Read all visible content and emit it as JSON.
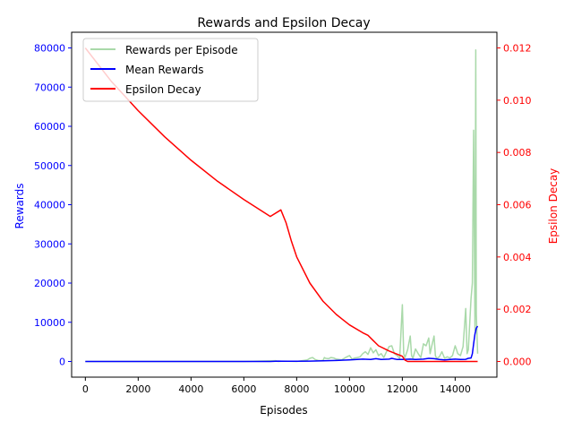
{
  "chart_data": {
    "type": "line",
    "title": "Rewards and Epsilon Decay",
    "xlabel": "Episodes",
    "ylabel_left": "Rewards",
    "ylabel_right": "Epsilon Decay",
    "xlim": [
      -520,
      15580
    ],
    "ylim_left": [
      -4000,
      84000
    ],
    "ylim_right": [
      -0.0006,
      0.0126
    ],
    "x_ticks": [
      0,
      2000,
      4000,
      6000,
      8000,
      10000,
      12000,
      14000
    ],
    "y_ticks_left": [
      0,
      10000,
      20000,
      30000,
      40000,
      50000,
      60000,
      70000,
      80000
    ],
    "y_ticks_right": [
      0.0,
      0.002,
      0.004,
      0.006,
      0.008,
      0.01,
      0.012
    ],
    "y_tick_labels_right": [
      "0.000",
      "0.002",
      "0.004",
      "0.006",
      "0.008",
      "0.010",
      "0.012"
    ],
    "legend": {
      "position": "top-left",
      "entries": [
        "Rewards per Episode",
        "Mean Rewards",
        "Epsilon Decay"
      ]
    },
    "colors": {
      "rewards": "#a9d9a9",
      "mean": "#0000ff",
      "epsilon": "#ff0000",
      "left_axis": "#0000ff",
      "right_axis": "#ff0000"
    },
    "series": [
      {
        "name": "Rewards per Episode",
        "x": [
          0,
          6000,
          7200,
          7300,
          7500,
          8000,
          8200,
          8300,
          8400,
          8500,
          8600,
          8700,
          8800,
          8900,
          9000,
          9050,
          9100,
          9200,
          9300,
          9400,
          9500,
          9600,
          9700,
          9800,
          9900,
          10000,
          10100,
          10200,
          10300,
          10400,
          10500,
          10600,
          10700,
          10800,
          10900,
          11000,
          11100,
          11200,
          11300,
          11400,
          11500,
          11600,
          11700,
          11800,
          11900,
          12000,
          12050,
          12100,
          12200,
          12300,
          12350,
          12400,
          12500,
          12600,
          12700,
          12800,
          12900,
          13000,
          13050,
          13100,
          13200,
          13250,
          13300,
          13400,
          13500,
          13600,
          13700,
          13800,
          13900,
          14000,
          14050,
          14100,
          14200,
          14300,
          14400,
          14450,
          14500,
          14600,
          14650,
          14700,
          14750,
          14780,
          14800,
          14850
        ],
        "values": [
          0,
          0,
          200,
          0,
          100,
          0,
          200,
          300,
          400,
          800,
          1000,
          500,
          300,
          200,
          300,
          1000,
          800,
          700,
          1000,
          900,
          600,
          500,
          400,
          800,
          1200,
          1500,
          600,
          900,
          1000,
          1200,
          2000,
          2500,
          1800,
          3500,
          2200,
          3000,
          1500,
          2000,
          1000,
          2500,
          3800,
          4000,
          2000,
          1500,
          800,
          14500,
          2000,
          1000,
          3000,
          6500,
          1500,
          800,
          3200,
          2000,
          1000,
          4500,
          4000,
          6000,
          2000,
          3500,
          6500,
          1500,
          800,
          1200,
          2500,
          800,
          1200,
          900,
          1500,
          4000,
          3000,
          2000,
          1500,
          3800,
          13500,
          2000,
          3000,
          16000,
          20000,
          59000,
          8000,
          79500,
          12000,
          2000
        ]
      },
      {
        "name": "Mean Rewards",
        "x": [
          0,
          7000,
          7300,
          7500,
          8000,
          8500,
          9000,
          9500,
          10000,
          10500,
          10800,
          11000,
          11200,
          11500,
          11600,
          11800,
          12000,
          12300,
          12500,
          12800,
          13000,
          13200,
          13400,
          13600,
          13800,
          14000,
          14200,
          14400,
          14500,
          14600,
          14650,
          14700,
          14750,
          14800,
          14850
        ],
        "values": [
          0,
          0,
          100,
          50,
          50,
          100,
          150,
          250,
          400,
          600,
          500,
          700,
          500,
          600,
          800,
          500,
          500,
          600,
          500,
          600,
          800,
          700,
          500,
          400,
          500,
          600,
          500,
          550,
          800,
          900,
          2000,
          4500,
          7000,
          8500,
          9000
        ]
      },
      {
        "name": "Epsilon Decay",
        "x": [
          0,
          1000,
          2000,
          3000,
          4000,
          5000,
          6000,
          7000,
          7400,
          7600,
          7800,
          8000,
          8500,
          9000,
          9500,
          10000,
          10500,
          10700,
          10900,
          11100,
          11500,
          12000,
          12100,
          12200,
          13000,
          14000,
          14850
        ],
        "values": [
          0.012,
          0.0107,
          0.0096,
          0.0086,
          0.0077,
          0.0069,
          0.0062,
          0.00555,
          0.0058,
          0.0053,
          0.0046,
          0.004,
          0.003,
          0.0023,
          0.0018,
          0.0014,
          0.0011,
          0.001,
          0.0008,
          0.0006,
          0.0004,
          0.0002,
          5e-05,
          0.0,
          0.0,
          0.0,
          0.0
        ]
      }
    ]
  }
}
